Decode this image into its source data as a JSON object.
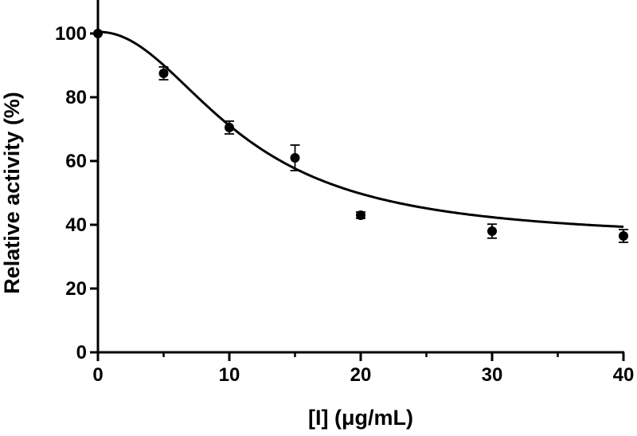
{
  "chart_data": {
    "type": "scatter",
    "title": "",
    "xlabel": "[I] (μg/mL)",
    "ylabel": "Relative activity (%)",
    "xlim": [
      0,
      40
    ],
    "ylim": [
      0,
      110
    ],
    "x_ticks": [
      0,
      10,
      20,
      30,
      40
    ],
    "x_minor_ticks": [
      5,
      15,
      25,
      35
    ],
    "y_ticks": [
      0,
      20,
      40,
      60,
      80,
      100
    ],
    "x_tick_labels": [
      "0",
      "10",
      "20",
      "30",
      "40"
    ],
    "y_tick_labels": [
      "0",
      "20",
      "40",
      "60",
      "80",
      "100"
    ],
    "grid": false,
    "legend": "none",
    "series": [
      {
        "x": [
          0,
          5,
          10,
          15,
          20,
          30,
          40
        ],
        "y": [
          100,
          87.5,
          70.5,
          61,
          43,
          38,
          36.5
        ],
        "error": [
          0,
          2,
          2,
          4,
          1,
          2.2,
          2
        ]
      }
    ],
    "fit_curve": {
      "type": "sigmoid",
      "top": 100.5,
      "bottom": 35.3,
      "ec50": 11,
      "hill": 2.1
    }
  }
}
